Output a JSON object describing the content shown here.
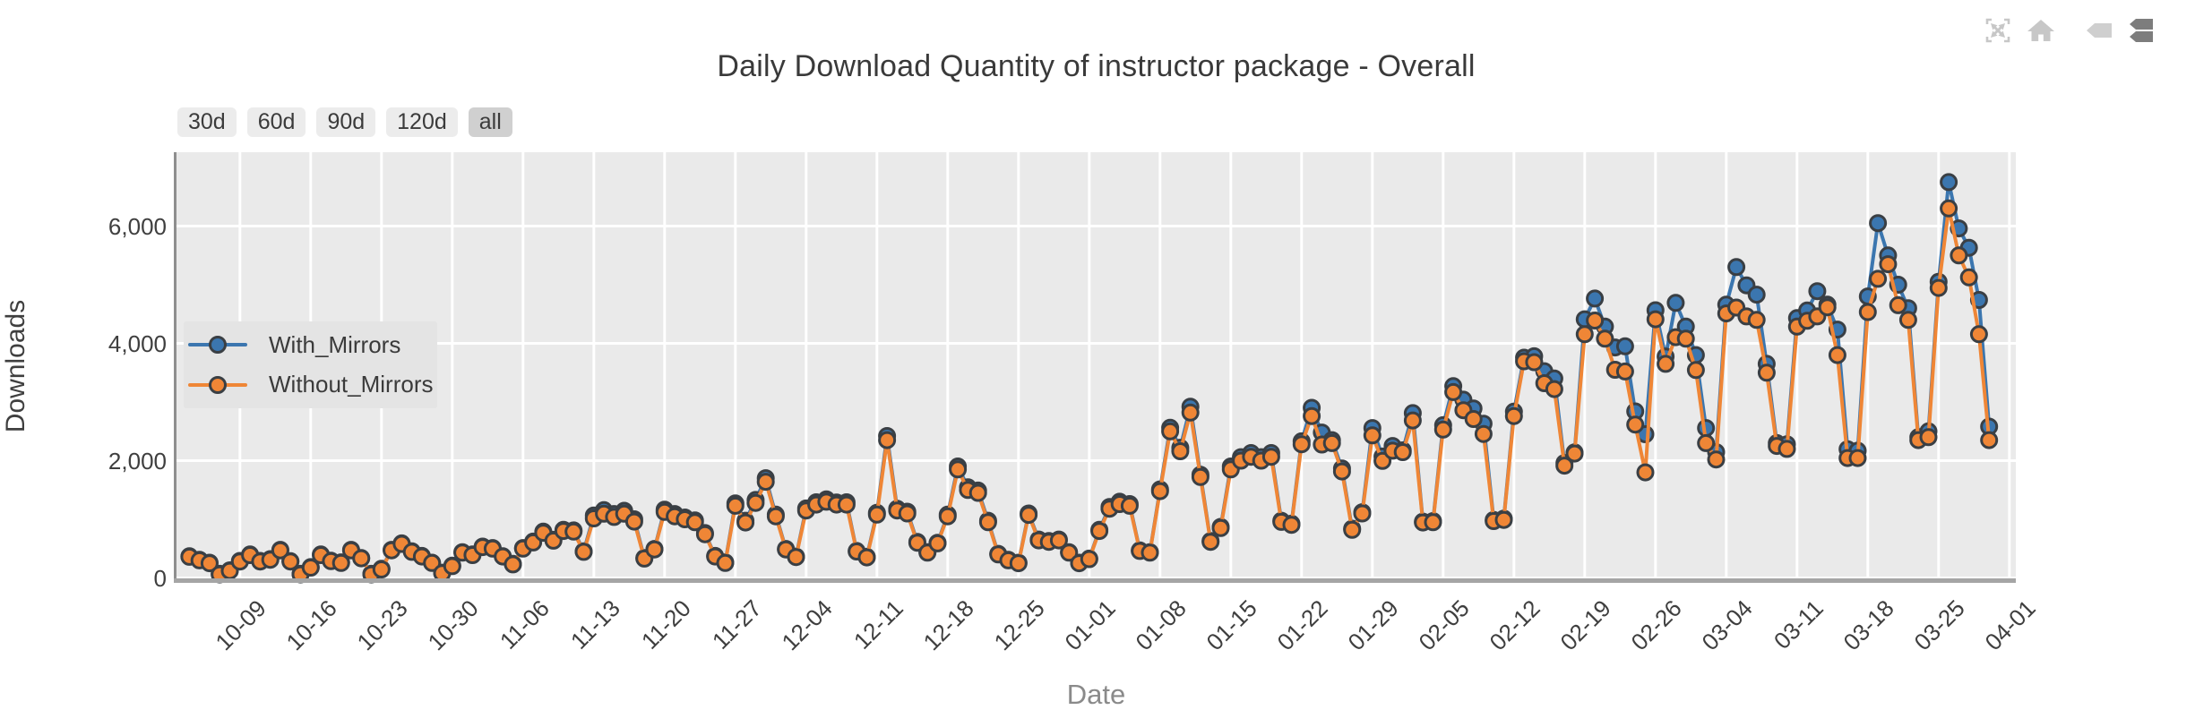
{
  "toolbar": {
    "icons": [
      {
        "name": "autoscale-icon"
      },
      {
        "name": "home-icon"
      },
      {
        "name": "hover-closest-icon"
      },
      {
        "name": "hover-compare-icon",
        "active": true
      }
    ]
  },
  "range_buttons": {
    "items": [
      {
        "label": "30d",
        "active": false
      },
      {
        "label": "60d",
        "active": false
      },
      {
        "label": "90d",
        "active": false
      },
      {
        "label": "120d",
        "active": false
      },
      {
        "label": "all",
        "active": true
      }
    ]
  },
  "colors": {
    "with_mirrors": "#3b76af",
    "without_mirrors": "#ef8636",
    "marker_edge": "#3a3f44",
    "plot_background": "#eaeaea",
    "gridline": "#ffffff",
    "bottom_spine": "#a5a5a5",
    "left_spine": "#8f8f8f",
    "title_text": "#3a3a3a",
    "tick_text": "#3f3f3f",
    "xlabel_text": "#8a8a8a",
    "button_bg": "#ececec",
    "button_active_bg": "#d0d0d0",
    "legend_bg": "#e4e4e4"
  },
  "chart_data": {
    "type": "line",
    "title": "Daily Download Quantity of instructor package - Overall",
    "xlabel": "Date",
    "ylabel": "Downloads",
    "grid": true,
    "legend_position": "center-left",
    "ylim": [
      0,
      7260
    ],
    "y_ticks": {
      "values": [
        0,
        2000,
        4000,
        6000
      ],
      "labels": [
        "0",
        "2,000",
        "4,000",
        "6,000"
      ]
    },
    "x_tick_labels": [
      "10-09",
      "10-16",
      "10-23",
      "10-30",
      "11-06",
      "11-13",
      "11-20",
      "11-27",
      "12-04",
      "12-11",
      "12-18",
      "12-25",
      "01-01",
      "01-08",
      "01-15",
      "01-22",
      "01-29",
      "02-05",
      "02-12",
      "02-19",
      "02-26",
      "03-04",
      "03-11",
      "03-18",
      "03-25",
      "04-01"
    ],
    "x": [
      "10-04",
      "10-05",
      "10-06",
      "10-07",
      "10-08",
      "10-09",
      "10-10",
      "10-11",
      "10-12",
      "10-13",
      "10-14",
      "10-15",
      "10-16",
      "10-17",
      "10-18",
      "10-19",
      "10-20",
      "10-21",
      "10-22",
      "10-23",
      "10-24",
      "10-25",
      "10-26",
      "10-27",
      "10-28",
      "10-29",
      "10-30",
      "10-31",
      "11-01",
      "11-02",
      "11-03",
      "11-04",
      "11-05",
      "11-06",
      "11-07",
      "11-08",
      "11-09",
      "11-10",
      "11-11",
      "11-12",
      "11-13",
      "11-14",
      "11-15",
      "11-16",
      "11-17",
      "11-18",
      "11-19",
      "11-20",
      "11-21",
      "11-22",
      "11-23",
      "11-24",
      "11-25",
      "11-26",
      "11-27",
      "11-28",
      "11-29",
      "11-30",
      "12-01",
      "12-02",
      "12-03",
      "12-04",
      "12-05",
      "12-06",
      "12-07",
      "12-08",
      "12-09",
      "12-10",
      "12-11",
      "12-12",
      "12-13",
      "12-14",
      "12-15",
      "12-16",
      "12-17",
      "12-18",
      "12-19",
      "12-20",
      "12-21",
      "12-22",
      "12-23",
      "12-24",
      "12-25",
      "12-26",
      "12-27",
      "12-28",
      "12-29",
      "12-30",
      "12-31",
      "01-01",
      "01-02",
      "01-03",
      "01-04",
      "01-05",
      "01-06",
      "01-07",
      "01-08",
      "01-09",
      "01-10",
      "01-11",
      "01-12",
      "01-13",
      "01-14",
      "01-15",
      "01-16",
      "01-17",
      "01-18",
      "01-19",
      "01-20",
      "01-21",
      "01-22",
      "01-23",
      "01-24",
      "01-25",
      "01-26",
      "01-27",
      "01-28",
      "01-29",
      "01-30",
      "01-31",
      "02-01",
      "02-02",
      "02-03",
      "02-04",
      "02-05",
      "02-06",
      "02-07",
      "02-08",
      "02-09",
      "02-10",
      "02-11",
      "02-12",
      "02-13",
      "02-14",
      "02-15",
      "02-16",
      "02-17",
      "02-18",
      "02-19",
      "02-20",
      "02-21",
      "02-22",
      "02-23",
      "02-24",
      "02-25",
      "02-26",
      "02-27",
      "02-28",
      "02-29",
      "03-01",
      "03-02",
      "03-03",
      "03-04",
      "03-05",
      "03-06",
      "03-07",
      "03-08",
      "03-09",
      "03-10",
      "03-11",
      "03-12",
      "03-13",
      "03-14",
      "03-15",
      "03-16",
      "03-17",
      "03-18",
      "03-19",
      "03-20",
      "03-21",
      "03-22",
      "03-23",
      "03-24",
      "03-25",
      "03-26",
      "03-27",
      "03-28",
      "03-29",
      "03-30"
    ],
    "series": [
      {
        "name": "With_Mirrors",
        "color": "#3b76af",
        "values": [
          370,
          310,
          260,
          70,
          130,
          290,
          400,
          290,
          320,
          480,
          285,
          70,
          185,
          400,
          295,
          265,
          480,
          340,
          70,
          155,
          480,
          590,
          455,
          375,
          260,
          90,
          210,
          440,
          400,
          535,
          510,
          370,
          240,
          510,
          620,
          790,
          650,
          820,
          810,
          455,
          1065,
          1155,
          1090,
          1145,
          1000,
          340,
          495,
          1165,
          1090,
          1030,
          980,
          765,
          375,
          265,
          1270,
          975,
          1330,
          1700,
          1080,
          495,
          365,
          1185,
          1290,
          1340,
          1285,
          1290,
          460,
          360,
          1110,
          2420,
          1180,
          1130,
          615,
          440,
          600,
          1080,
          1900,
          1545,
          1490,
          975,
          410,
          310,
          260,
          1100,
          655,
          630,
          655,
          440,
          260,
          330,
          820,
          1210,
          1300,
          1260,
          470,
          440,
          1510,
          2560,
          2220,
          2920,
          1760,
          630,
          870,
          1900,
          2060,
          2130,
          2060,
          2130,
          975,
          925,
          2330,
          2900,
          2480,
          2350,
          1865,
          840,
          1120,
          2555,
          2070,
          2250,
          2175,
          2810,
          960,
          970,
          2605,
          3270,
          3040,
          2890,
          2630,
          990,
          1010,
          2835,
          3755,
          3780,
          3525,
          3400,
          1960,
          2140,
          4410,
          4765,
          4285,
          3930,
          3950,
          2840,
          2450,
          4565,
          3775,
          4690,
          4285,
          3800,
          2555,
          2145,
          4660,
          5300,
          4990,
          4830,
          3650,
          2300,
          2280,
          4430,
          4560,
          4890,
          4660,
          4235,
          2195,
          2170,
          4800,
          6050,
          5500,
          5000,
          4600,
          2400,
          2500,
          5050,
          6750,
          5960,
          5630,
          4740,
          2580
        ]
      },
      {
        "name": "Without_Mirrors",
        "color": "#ef8636",
        "values": [
          360,
          300,
          250,
          60,
          120,
          280,
          390,
          280,
          310,
          470,
          280,
          60,
          175,
          390,
          285,
          255,
          470,
          335,
          60,
          145,
          470,
          580,
          445,
          365,
          255,
          80,
          200,
          430,
          390,
          525,
          500,
          365,
          230,
          500,
          605,
          770,
          635,
          800,
          790,
          445,
          1015,
          1095,
          1040,
          1095,
          960,
          330,
          485,
          1125,
          1050,
          1000,
          950,
          745,
          365,
          255,
          1230,
          945,
          1280,
          1640,
          1050,
          485,
          355,
          1150,
          1250,
          1300,
          1250,
          1250,
          450,
          350,
          1080,
          2350,
          1150,
          1100,
          600,
          430,
          590,
          1050,
          1850,
          1500,
          1450,
          950,
          400,
          300,
          250,
          1075,
          640,
          615,
          640,
          430,
          250,
          320,
          800,
          1180,
          1260,
          1230,
          460,
          430,
          1480,
          2500,
          2160,
          2820,
          1720,
          615,
          850,
          1850,
          2000,
          2065,
          2000,
          2065,
          955,
          905,
          2280,
          2760,
          2275,
          2300,
          1815,
          820,
          1100,
          2430,
          1995,
          2170,
          2145,
          2685,
          945,
          950,
          2530,
          3170,
          2860,
          2710,
          2455,
          970,
          990,
          2760,
          3695,
          3680,
          3320,
          3220,
          1915,
          2120,
          4155,
          4390,
          4080,
          3550,
          3520,
          2615,
          1800,
          4410,
          3650,
          4105,
          4080,
          3545,
          2300,
          2020,
          4510,
          4610,
          4460,
          4400,
          3500,
          2250,
          2200,
          4285,
          4385,
          4460,
          4615,
          3800,
          2045,
          2045,
          4535,
          5100,
          5350,
          4650,
          4400,
          2350,
          2400,
          4945,
          6300,
          5500,
          5125,
          4155,
          2350
        ]
      }
    ]
  }
}
